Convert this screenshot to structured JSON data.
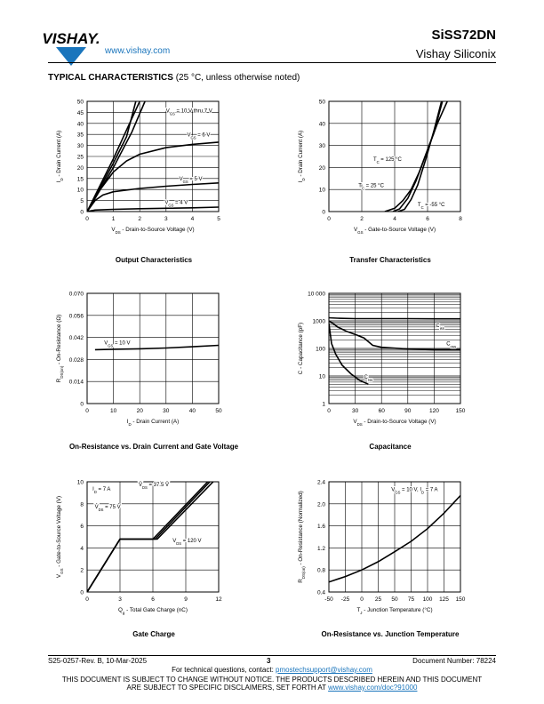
{
  "header": {
    "brand": "VISHAY.",
    "url": "www.vishay.com",
    "part_number": "SiSS72DN",
    "company": "Vishay Siliconix",
    "section_title": "TYPICAL CHARACTERISTICS",
    "section_note": "(25 °C, unless otherwise noted)"
  },
  "footer": {
    "doc_rev": "S25-0257-Rev. B, 10-Mar-2025",
    "page": "3",
    "doc_number": "Document Number: 78224",
    "contact_prefix": "For technical questions, contact: ",
    "contact_email": "pmostechsupport@vishay.com",
    "notice_line1": "THIS DOCUMENT IS SUBJECT TO CHANGE WITHOUT NOTICE. THE PRODUCTS DESCRIBED HEREIN AND THIS DOCUMENT",
    "notice_line2_prefix": "ARE SUBJECT TO SPECIFIC DISCLAIMERS, SET FORTH AT ",
    "notice_link": "www.vishay.com/doc?91000"
  },
  "chart_data": [
    {
      "id": "output",
      "type": "line",
      "title": "Output Characteristics",
      "xlabel": "VDS - Drain-to-Source Voltage (V)",
      "ylabel": "ID - Drain Current (A)",
      "xlim": [
        0,
        5
      ],
      "ylim": [
        0,
        50
      ],
      "xticks": [
        0,
        1,
        2,
        3,
        4,
        5
      ],
      "yticks": [
        0,
        5,
        10,
        15,
        20,
        25,
        30,
        35,
        40,
        45,
        50
      ],
      "grid": true,
      "series": [
        {
          "name": "VGS = 10 V thru 7 V",
          "x": [
            0,
            0.5,
            1,
            1.5,
            2
          ],
          "y": [
            0,
            12,
            24,
            37,
            50
          ]
        },
        {
          "name": "",
          "x": [
            0,
            0.5,
            1,
            1.5,
            1.85
          ],
          "y": [
            0,
            11,
            22,
            34,
            50
          ]
        },
        {
          "name": "",
          "x": [
            0,
            0.5,
            1,
            1.7,
            2.2
          ],
          "y": [
            0,
            10,
            20,
            36,
            50
          ]
        },
        {
          "name": "VGS = 6 V",
          "x": [
            0,
            0.5,
            1,
            1.5,
            2,
            3,
            4,
            5
          ],
          "y": [
            0,
            10,
            18,
            23,
            26,
            29,
            30.5,
            31.5
          ]
        },
        {
          "name": "VGS = 5 V",
          "x": [
            0,
            0.3,
            0.6,
            1,
            2,
            3,
            4,
            5
          ],
          "y": [
            0,
            5,
            7.5,
            9,
            10.5,
            11.5,
            12.3,
            13
          ]
        },
        {
          "name": "VGS = 4 V",
          "x": [
            0,
            0.3,
            1,
            2,
            3,
            4,
            5
          ],
          "y": [
            0,
            0.7,
            1,
            1.3,
            1.5,
            1.7,
            2
          ]
        }
      ],
      "annotations": [
        {
          "text": "V",
          "sub": "GS",
          "rest": " = 10 V thru 7 V",
          "x": 3.0,
          "y": 45
        },
        {
          "text": "V",
          "sub": "GS",
          "rest": " = 6 V",
          "x": 3.8,
          "y": 34
        },
        {
          "text": "V",
          "sub": "GS",
          "rest": " = 5 V",
          "x": 3.5,
          "y": 14.2
        },
        {
          "text": "V",
          "sub": "GS",
          "rest": " = 4 V",
          "x": 2.95,
          "y": 3.4
        }
      ]
    },
    {
      "id": "transfer",
      "type": "line",
      "title": "Transfer Characteristics",
      "xlabel": "VGS - Gate-to-Source Voltage (V)",
      "ylabel": "ID - Drain Current (A)",
      "xlim": [
        0,
        8
      ],
      "ylim": [
        0,
        50
      ],
      "xticks": [
        0,
        2,
        4,
        6,
        8
      ],
      "yticks": [
        0,
        10,
        20,
        30,
        40,
        50
      ],
      "grid": true,
      "series": [
        {
          "name": "TC = 125 °C",
          "x": [
            3.4,
            4,
            4.5,
            5,
            5.5,
            6,
            6.6,
            7.2
          ],
          "y": [
            0,
            1.5,
            5,
            10,
            18,
            28,
            40,
            50
          ]
        },
        {
          "name": "TC = 25 °C",
          "x": [
            3.9,
            4.3,
            4.8,
            5.3,
            5.8,
            6.4,
            6.9
          ],
          "y": [
            0,
            1.2,
            6,
            14,
            24,
            36,
            50
          ]
        },
        {
          "name": "TC = -55 °C",
          "x": [
            4.2,
            4.6,
            5,
            5.4,
            5.9,
            6.4,
            6.85
          ],
          "y": [
            0,
            1,
            5.5,
            12,
            24,
            37,
            50
          ]
        }
      ],
      "annotations": [
        {
          "text": "T",
          "sub": "C",
          "rest": " = 125 °C",
          "x": 2.7,
          "y": 23
        },
        {
          "text": "T",
          "sub": "C",
          "rest": " = 25 °C",
          "x": 1.8,
          "y": 11
        },
        {
          "text": "T",
          "sub": "C",
          "rest": " = -55 °C",
          "x": 5.4,
          "y": 2.4
        }
      ]
    },
    {
      "id": "ron-id",
      "type": "line",
      "title": "On-Resistance vs. Drain Current and Gate Voltage",
      "xlabel": "ID - Drain Current (A)",
      "ylabel": "RDS(on) - On-Resistance (Ω)",
      "xlim": [
        0,
        50
      ],
      "ylim": [
        0,
        0.07
      ],
      "xticks": [
        0,
        10,
        20,
        30,
        40,
        50
      ],
      "yticks": [
        0,
        0.014,
        0.028,
        0.042,
        0.056,
        0.07
      ],
      "ytick_labels": [
        "0",
        "0.014",
        "0.028",
        "0.042",
        "0.056",
        "0.070"
      ],
      "grid": true,
      "series": [
        {
          "name": "VGS = 10 V",
          "x": [
            3,
            10,
            20,
            30,
            40,
            50
          ],
          "y": [
            0.0342,
            0.0345,
            0.0348,
            0.0353,
            0.0361,
            0.037
          ]
        }
      ],
      "annotations": [
        {
          "text": "V",
          "sub": "GS",
          "rest": " = 10 V",
          "x": 6.5,
          "y": 0.0375
        }
      ]
    },
    {
      "id": "capacitance",
      "type": "line",
      "title": "Capacitance",
      "xlabel": "VDS - Drain-to-Source Voltage (V)",
      "ylabel": "C - Capacitance (pF)",
      "xlim": [
        0,
        150
      ],
      "ylim": [
        1,
        10000
      ],
      "yscale": "log",
      "xticks": [
        0,
        30,
        60,
        90,
        120,
        150
      ],
      "yticks": [
        1,
        10,
        100,
        1000,
        10000
      ],
      "ytick_labels": [
        "1",
        "10",
        "100",
        "1000",
        "10 000"
      ],
      "grid": true,
      "series": [
        {
          "name": "Ciss",
          "x": [
            0,
            10,
            30,
            60,
            90,
            120,
            150
          ],
          "y": [
            1300,
            1250,
            1200,
            1200,
            1200,
            1190,
            1190
          ]
        },
        {
          "name": "Coss",
          "x": [
            0,
            5,
            10,
            20,
            30,
            40,
            50,
            60,
            90,
            120,
            150
          ],
          "y": [
            1000,
            800,
            600,
            420,
            320,
            240,
            130,
            110,
            95,
            90,
            90
          ]
        },
        {
          "name": "Crss",
          "x": [
            0,
            3,
            8,
            15,
            25,
            35,
            45
          ],
          "y": [
            800,
            150,
            60,
            25,
            12,
            7,
            5
          ]
        }
      ],
      "annotations": [
        {
          "text": "C",
          "sub": "iss",
          "rest": "",
          "x": 122,
          "y": 600
        },
        {
          "text": "C",
          "sub": "oss",
          "rest": "",
          "x": 134,
          "y": 130
        },
        {
          "text": "C",
          "sub": "rss",
          "rest": "",
          "x": 40,
          "y": 8
        }
      ]
    },
    {
      "id": "gate-charge",
      "type": "line",
      "title": "Gate Charge",
      "xlabel": "Qg - Total Gate Charge (nC)",
      "ylabel": "VGS - Gate-to-Source Voltage (V)",
      "xlim": [
        0,
        12
      ],
      "ylim": [
        0,
        10
      ],
      "xticks": [
        0,
        3,
        6,
        9,
        12
      ],
      "yticks": [
        0,
        2,
        4,
        6,
        8,
        10
      ],
      "grid": true,
      "series": [
        {
          "name": "VDS = 37.5 V",
          "x": [
            0,
            3,
            6,
            11
          ],
          "y": [
            0,
            4.8,
            4.8,
            10
          ]
        },
        {
          "name": "VDS = 75 V",
          "x": [
            0,
            3,
            6.2,
            11.2
          ],
          "y": [
            0,
            4.8,
            4.8,
            10
          ]
        },
        {
          "name": "VDS = 120 V",
          "x": [
            0,
            3,
            6.4,
            11.5
          ],
          "y": [
            0,
            4.8,
            4.8,
            10
          ]
        }
      ],
      "annotations": [
        {
          "text": "I",
          "sub": "D",
          "rest": " = 7 A",
          "x": 0.5,
          "y": 9.2
        },
        {
          "text": "V",
          "sub": "DS",
          "rest": " = 37.5 V",
          "x": 4.7,
          "y": 9.6
        },
        {
          "text": "V",
          "sub": "DS",
          "rest": " = 75 V",
          "x": 0.7,
          "y": 7.6
        },
        {
          "text": "V",
          "sub": "DS",
          "rest": " = 120 V",
          "x": 7.8,
          "y": 4.5
        }
      ]
    },
    {
      "id": "ron-tj",
      "type": "line",
      "title": "On-Resistance vs. Junction Temperature",
      "xlabel": "TJ - Junction Temperature (°C)",
      "ylabel": "RDS(on) - On-Resistance (Normalized)",
      "xlim": [
        -50,
        150
      ],
      "ylim": [
        0.4,
        2.4
      ],
      "xticks": [
        -50,
        -25,
        0,
        25,
        50,
        75,
        100,
        125,
        150
      ],
      "yticks": [
        0.4,
        0.8,
        1.2,
        1.6,
        2.0,
        2.4
      ],
      "ytick_labels": [
        "0.4",
        "0.8",
        "1.2",
        "1.6",
        "2.0",
        "2.4"
      ],
      "grid": true,
      "series": [
        {
          "name": "VGS = 10 V, ID = 7 A",
          "x": [
            -50,
            -25,
            0,
            25,
            50,
            75,
            100,
            125,
            150
          ],
          "y": [
            0.58,
            0.68,
            0.8,
            0.95,
            1.13,
            1.32,
            1.55,
            1.83,
            2.15
          ]
        }
      ],
      "annotations": [
        {
          "text": "V",
          "sub": "GS",
          "rest": " = 10 V, I",
          "sub2": "D",
          "rest2": " = 7 A",
          "x": 45,
          "y": 2.23
        }
      ]
    }
  ]
}
